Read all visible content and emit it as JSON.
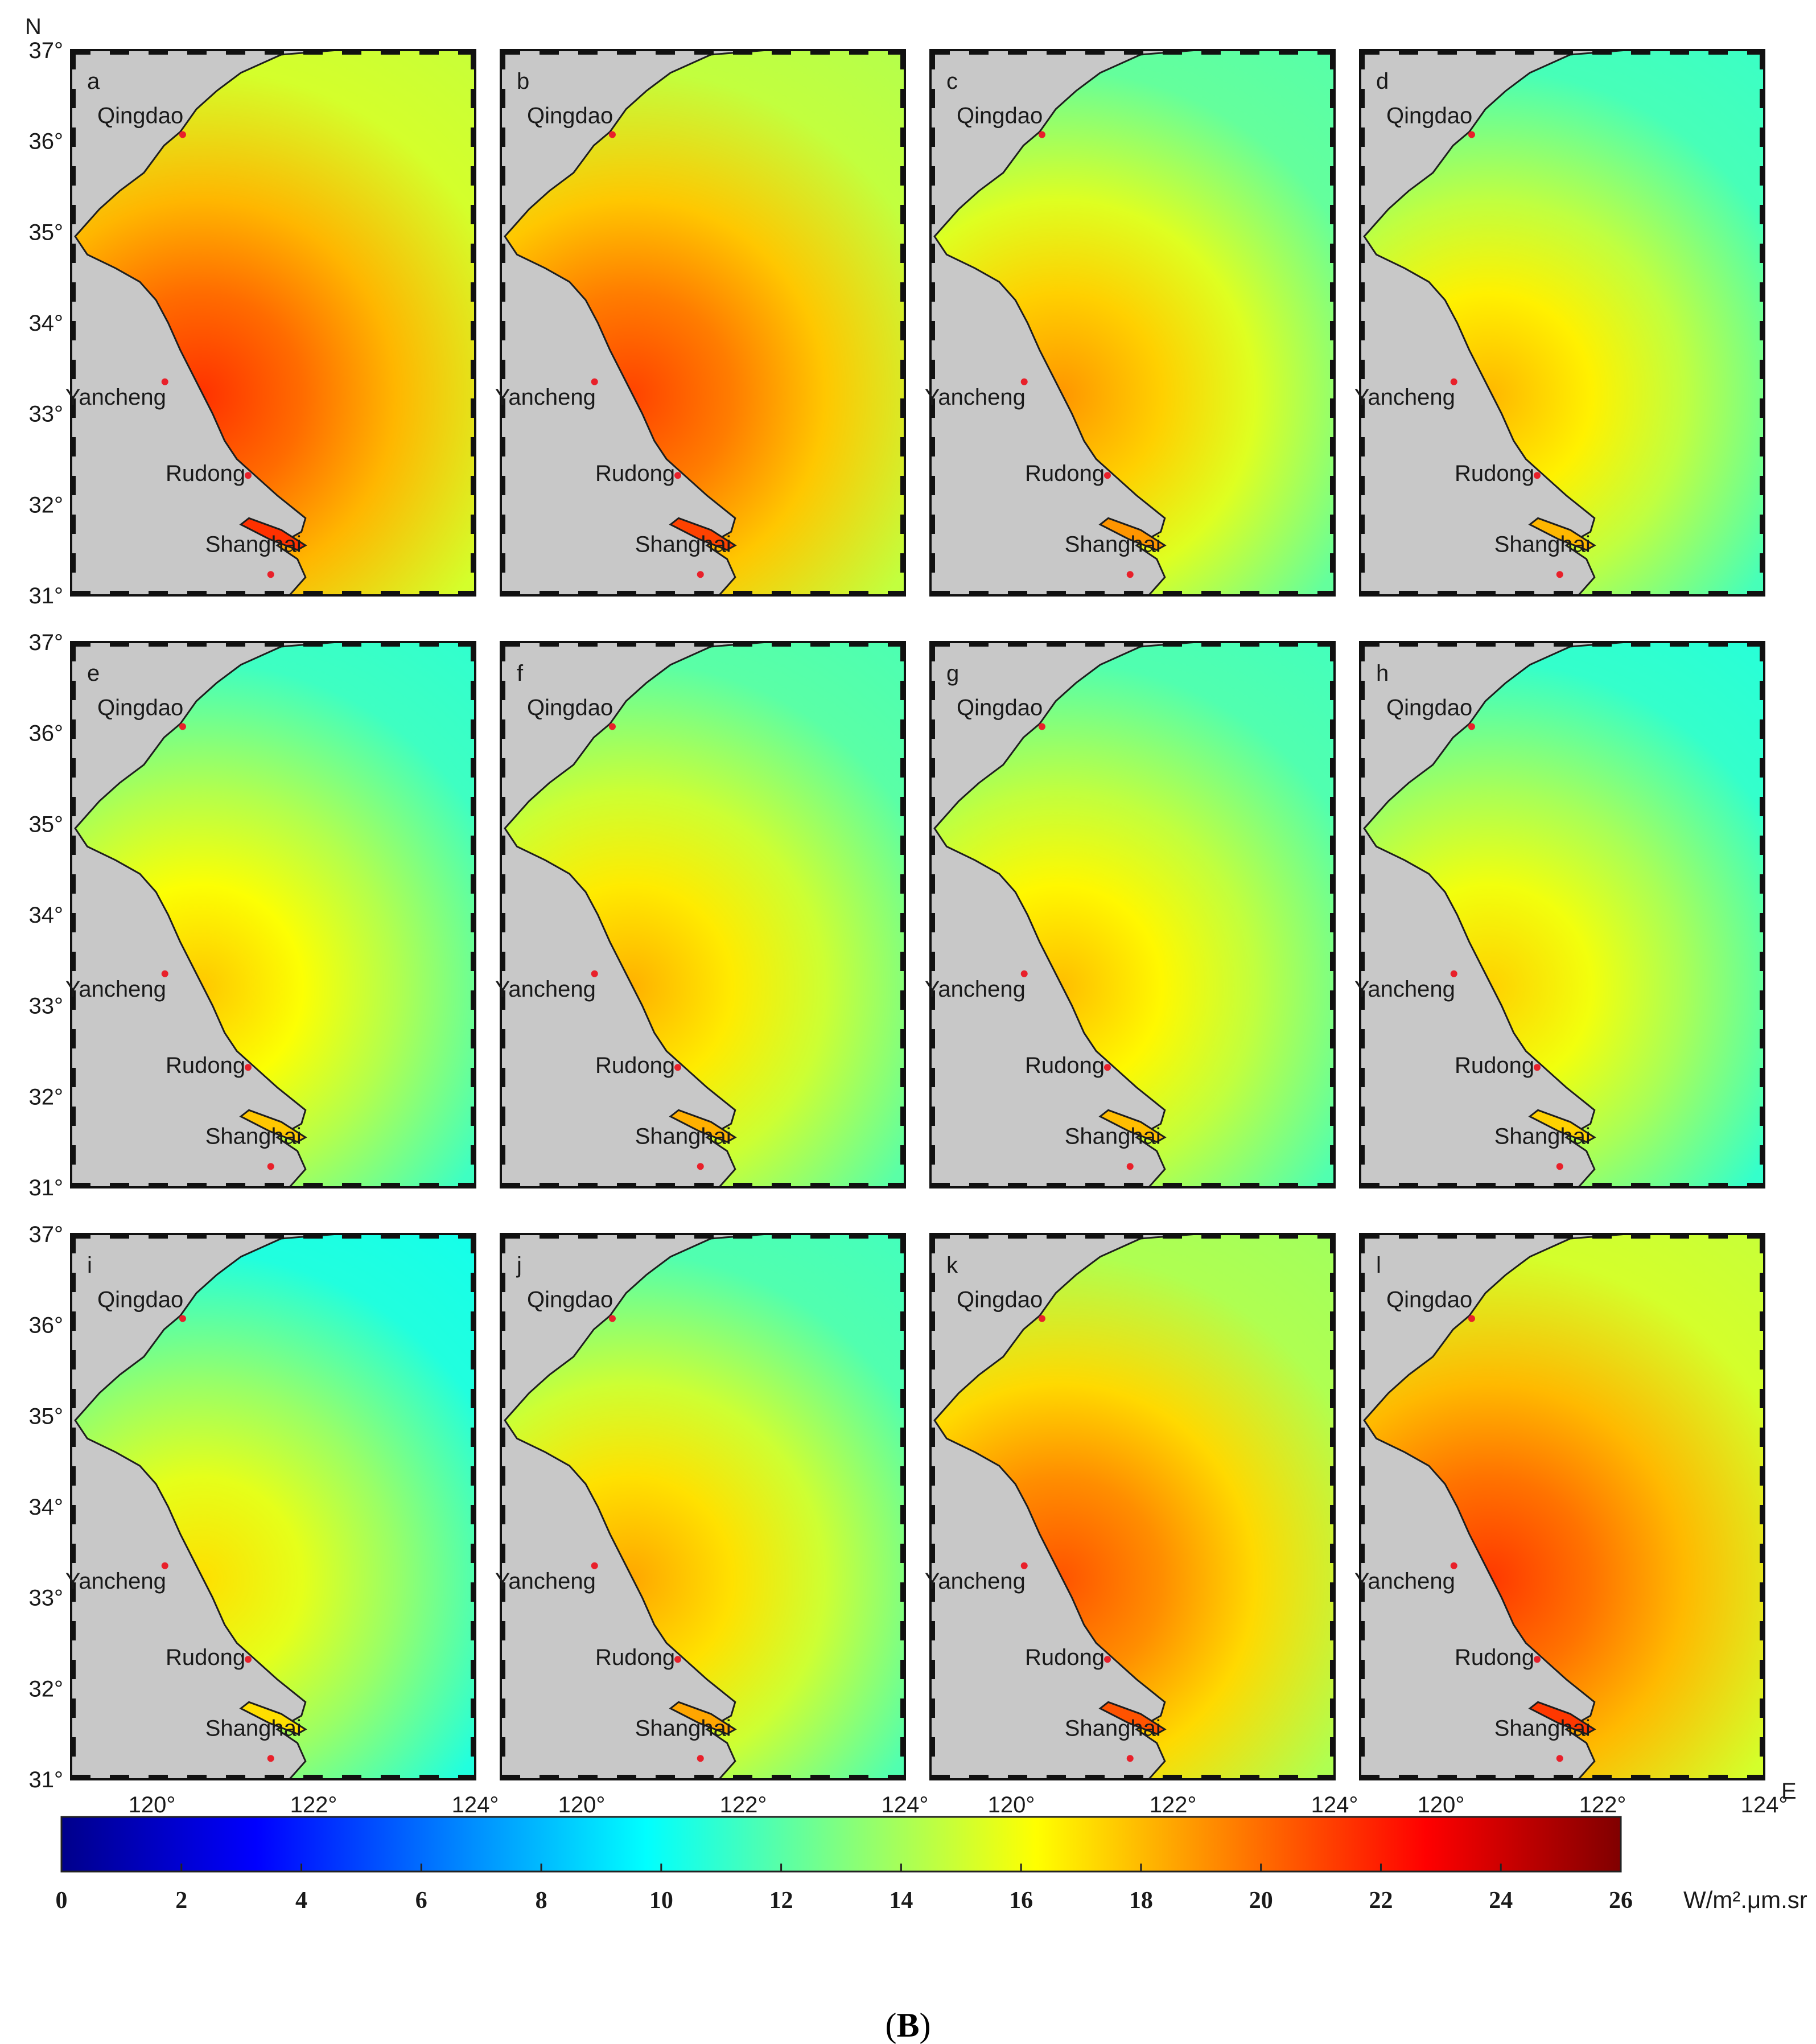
{
  "figure": {
    "caption_open": "(",
    "caption_letter": "B",
    "caption_close": ")"
  },
  "axes": {
    "north_label": "N",
    "east_label": "E",
    "lat_ticks": [
      "31°",
      "32°",
      "33°",
      "34°",
      "35°",
      "36°",
      "37°"
    ],
    "lon_ticks": [
      "120°",
      "122°",
      "124°"
    ]
  },
  "cities": [
    {
      "name": "Qingdao",
      "lon": 120.38,
      "lat": 36.07
    },
    {
      "name": "Yancheng",
      "lon": 120.16,
      "lat": 33.35
    },
    {
      "name": "Rudong",
      "lon": 121.19,
      "lat": 32.32
    },
    {
      "name": "Shanghai",
      "lon": 121.47,
      "lat": 31.23
    }
  ],
  "panels": [
    {
      "id": "a",
      "level": 0.95,
      "coastal": 1.0
    },
    {
      "id": "b",
      "level": 0.85,
      "coastal": 0.95
    },
    {
      "id": "c",
      "level": 0.35,
      "coastal": 0.7
    },
    {
      "id": "d",
      "level": 0.2,
      "coastal": 0.6
    },
    {
      "id": "e",
      "level": 0.15,
      "coastal": 0.55
    },
    {
      "id": "f",
      "level": 0.3,
      "coastal": 0.62
    },
    {
      "id": "g",
      "level": 0.25,
      "coastal": 0.58
    },
    {
      "id": "h",
      "level": 0.1,
      "coastal": 0.52
    },
    {
      "id": "i",
      "level": 0.0,
      "coastal": 0.48
    },
    {
      "id": "j",
      "level": 0.25,
      "coastal": 0.65
    },
    {
      "id": "k",
      "level": 0.75,
      "coastal": 0.9
    },
    {
      "id": "l",
      "level": 0.95,
      "coastal": 0.98
    }
  ],
  "colorbar": {
    "min": 0,
    "max": 26,
    "ticks": [
      "0",
      "2",
      "4",
      "6",
      "8",
      "10",
      "12",
      "14",
      "16",
      "18",
      "20",
      "22",
      "24",
      "26"
    ],
    "unit": "W/m².μm.sr",
    "colors": [
      "#00008b",
      "#0000ff",
      "#0080ff",
      "#00ffff",
      "#80ff80",
      "#ffff00",
      "#ff8000",
      "#ff0000",
      "#800000"
    ]
  },
  "colors": {
    "land": "#c8c8c8",
    "coast": "#1e1e1e",
    "city_marker": "#e8202a",
    "low_sea": "#22e6f0",
    "mid_sea": "#8ef26e",
    "high_sea": "#f4f230",
    "coastal_high": "#f08a1e"
  }
}
